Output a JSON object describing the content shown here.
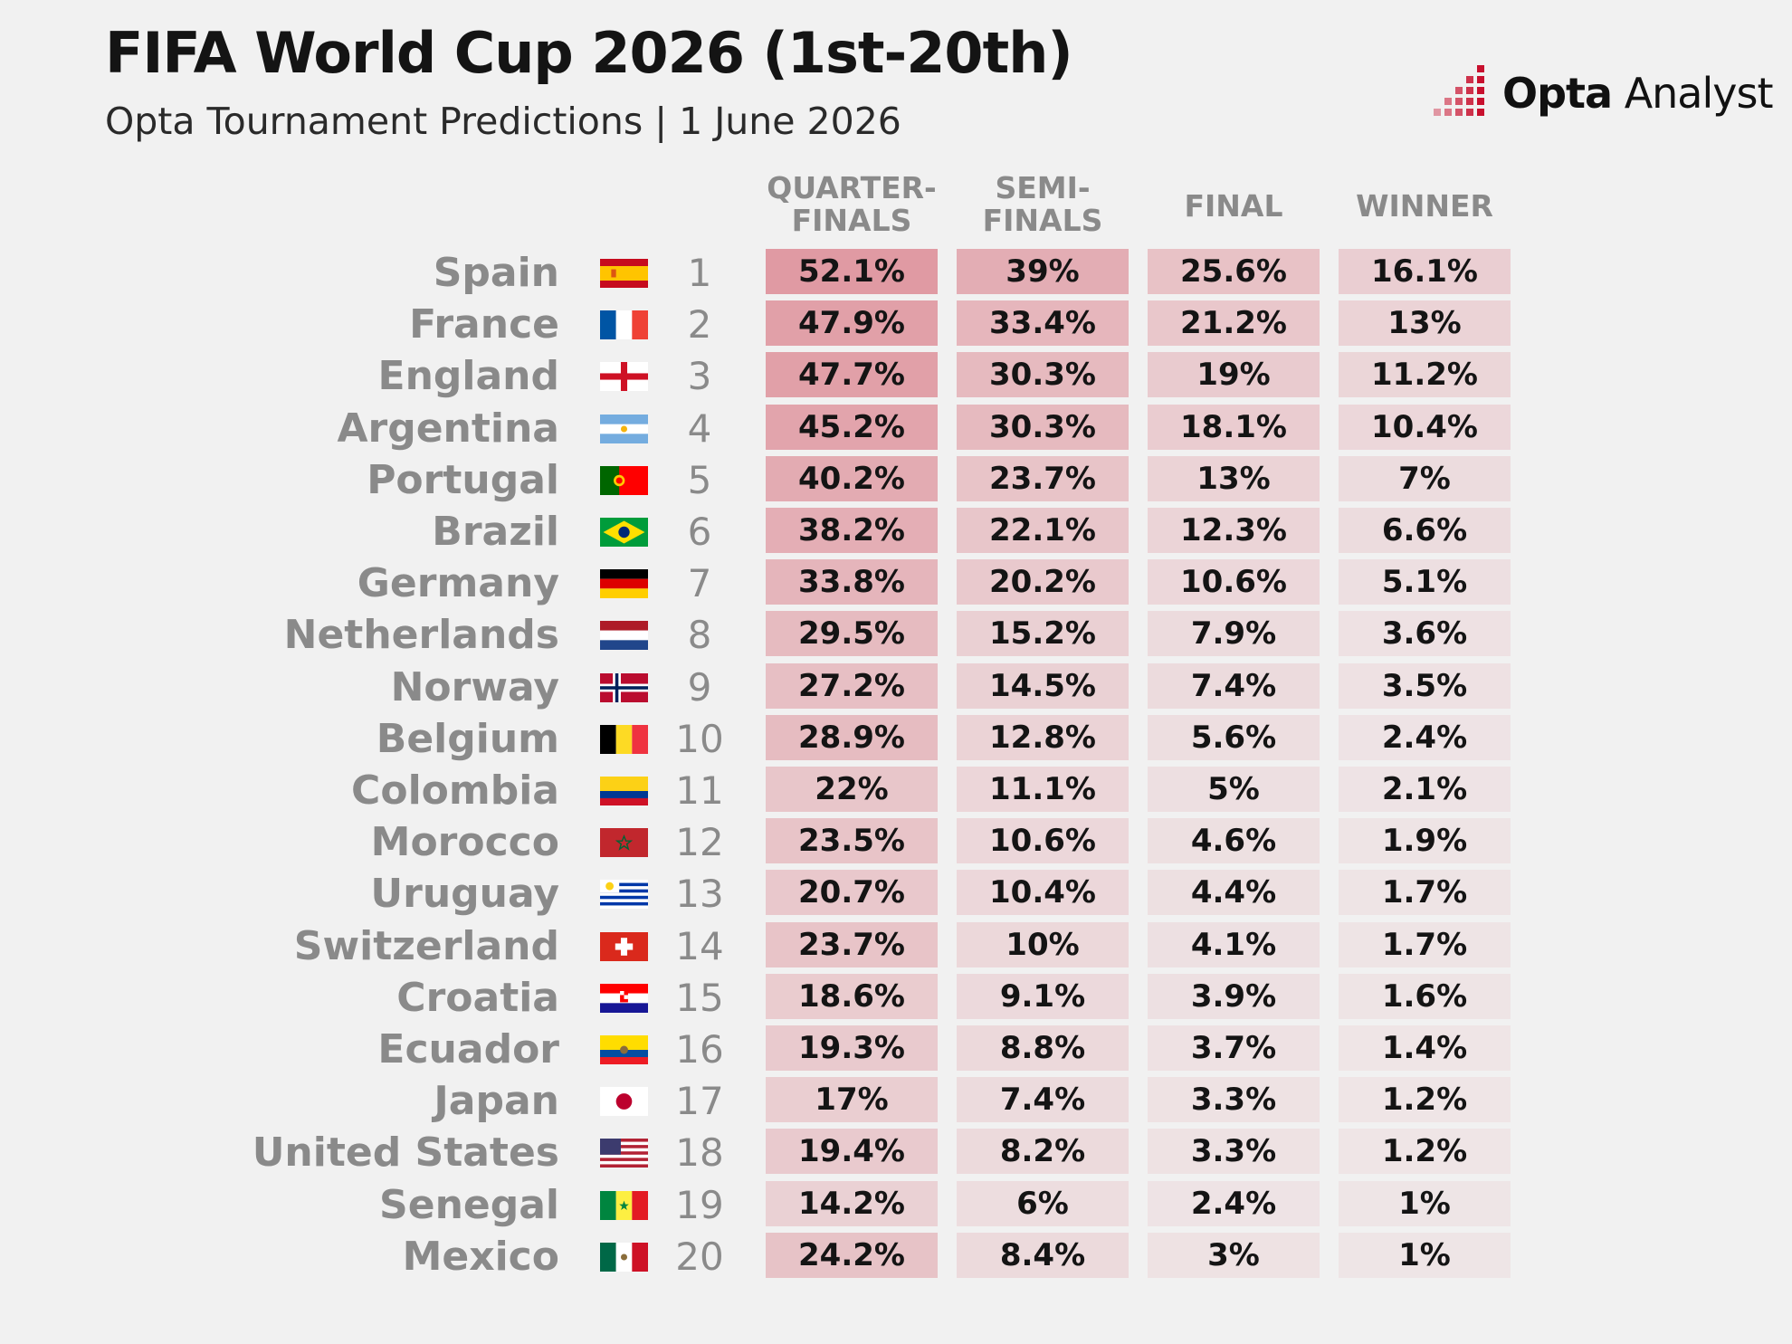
{
  "title": "FIFA World Cup 2026 (1st-20th)",
  "subtitle": "Opta Tournament Predictions | 1 June 2026",
  "logo": {
    "brand_bold": "Opta",
    "brand_light": "Analyst",
    "icon": "opta-bars-icon",
    "accent": "#c8102e"
  },
  "columns": [
    {
      "line1": "QUARTER-",
      "line2": "FINALS"
    },
    {
      "line1": "SEMI-",
      "line2": "FINALS"
    },
    {
      "line1": "FINAL",
      "line2": ""
    },
    {
      "line1": "WINNER",
      "line2": ""
    }
  ],
  "heat_color": "#cf4455",
  "chart_data": {
    "type": "table",
    "title": "FIFA World Cup 2026 (1st-20th)",
    "subtitle": "Opta Tournament Predictions | 1 June 2026",
    "columns": [
      "QUARTER-FINALS",
      "SEMI-FINALS",
      "FINAL",
      "WINNER"
    ],
    "rows": [
      {
        "country": "Spain",
        "flag": "spain-flag",
        "rank": "1",
        "values": [
          "52.1%",
          "39%",
          "25.6%",
          "16.1%"
        ]
      },
      {
        "country": "France",
        "flag": "france-flag",
        "rank": "2",
        "values": [
          "47.9%",
          "33.4%",
          "21.2%",
          "13%"
        ]
      },
      {
        "country": "England",
        "flag": "england-flag",
        "rank": "3",
        "values": [
          "47.7%",
          "30.3%",
          "19%",
          "11.2%"
        ]
      },
      {
        "country": "Argentina",
        "flag": "argentina-flag",
        "rank": "4",
        "values": [
          "45.2%",
          "30.3%",
          "18.1%",
          "10.4%"
        ]
      },
      {
        "country": "Portugal",
        "flag": "portugal-flag",
        "rank": "5",
        "values": [
          "40.2%",
          "23.7%",
          "13%",
          "7%"
        ]
      },
      {
        "country": "Brazil",
        "flag": "brazil-flag",
        "rank": "6",
        "values": [
          "38.2%",
          "22.1%",
          "12.3%",
          "6.6%"
        ]
      },
      {
        "country": "Germany",
        "flag": "germany-flag",
        "rank": "7",
        "values": [
          "33.8%",
          "20.2%",
          "10.6%",
          "5.1%"
        ]
      },
      {
        "country": "Netherlands",
        "flag": "netherlands-flag",
        "rank": "8",
        "values": [
          "29.5%",
          "15.2%",
          "7.9%",
          "3.6%"
        ]
      },
      {
        "country": "Norway",
        "flag": "norway-flag",
        "rank": "9",
        "values": [
          "27.2%",
          "14.5%",
          "7.4%",
          "3.5%"
        ]
      },
      {
        "country": "Belgium",
        "flag": "belgium-flag",
        "rank": "10",
        "values": [
          "28.9%",
          "12.8%",
          "5.6%",
          "2.4%"
        ]
      },
      {
        "country": "Colombia",
        "flag": "colombia-flag",
        "rank": "11",
        "values": [
          "22%",
          "11.1%",
          "5%",
          "2.1%"
        ]
      },
      {
        "country": "Morocco",
        "flag": "morocco-flag",
        "rank": "12",
        "values": [
          "23.5%",
          "10.6%",
          "4.6%",
          "1.9%"
        ]
      },
      {
        "country": "Uruguay",
        "flag": "uruguay-flag",
        "rank": "13",
        "values": [
          "20.7%",
          "10.4%",
          "4.4%",
          "1.7%"
        ]
      },
      {
        "country": "Switzerland",
        "flag": "switzerland-flag",
        "rank": "14",
        "values": [
          "23.7%",
          "10%",
          "4.1%",
          "1.7%"
        ]
      },
      {
        "country": "Croatia",
        "flag": "croatia-flag",
        "rank": "15",
        "values": [
          "18.6%",
          "9.1%",
          "3.9%",
          "1.6%"
        ]
      },
      {
        "country": "Ecuador",
        "flag": "ecuador-flag",
        "rank": "16",
        "values": [
          "19.3%",
          "8.8%",
          "3.7%",
          "1.4%"
        ]
      },
      {
        "country": "Japan",
        "flag": "japan-flag",
        "rank": "17",
        "values": [
          "17%",
          "7.4%",
          "3.3%",
          "1.2%"
        ]
      },
      {
        "country": "United States",
        "flag": "usa-flag",
        "rank": "18",
        "values": [
          "19.4%",
          "8.2%",
          "3.3%",
          "1.2%"
        ]
      },
      {
        "country": "Senegal",
        "flag": "senegal-flag",
        "rank": "19",
        "values": [
          "14.2%",
          "6%",
          "2.4%",
          "1%"
        ]
      },
      {
        "country": "Mexico",
        "flag": "mexico-flag",
        "rank": "20",
        "values": [
          "24.2%",
          "8.4%",
          "3%",
          "1%"
        ]
      }
    ]
  }
}
